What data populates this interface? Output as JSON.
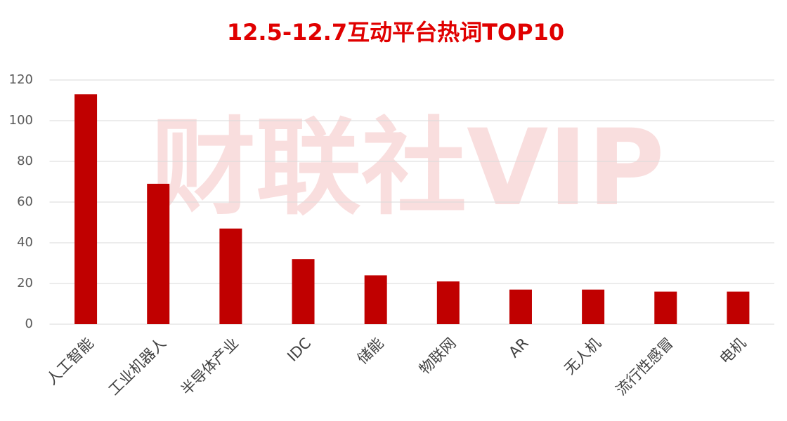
{
  "chart_data": {
    "type": "bar",
    "title": "12.5-12.7互动平台热词TOP10",
    "watermark": "财联社VIP",
    "categories": [
      "人工智能",
      "工业机器人",
      "半导体产业",
      "IDC",
      "储能",
      "物联网",
      "AR",
      "无人机",
      "流行性感冒",
      "电机"
    ],
    "values": [
      113,
      69,
      47,
      32,
      24,
      21,
      17,
      17,
      16,
      16
    ],
    "color": "#c00000",
    "ylim": [
      0,
      120
    ],
    "yticks": [
      0,
      20,
      40,
      60,
      80,
      100,
      120
    ],
    "grid": true
  }
}
